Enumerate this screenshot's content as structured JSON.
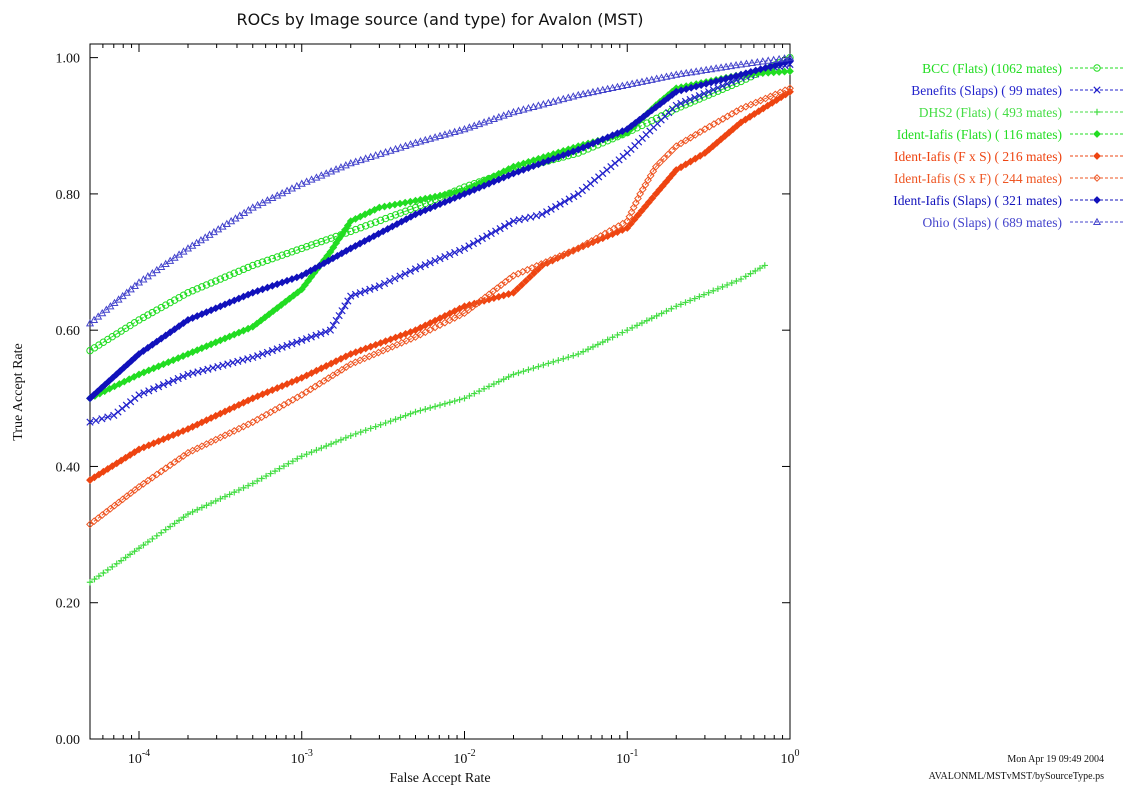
{
  "chart_data": {
    "type": "line",
    "title": "ROCs by Image source (and type) for Avalon (MST)",
    "xlabel": "False Accept Rate",
    "ylabel": "True Accept Rate",
    "x_scale": "log",
    "xlim": [
      5e-05,
      1.0
    ],
    "ylim": [
      0.0,
      1.02
    ],
    "x_ticks": [
      {
        "value": 0.0001,
        "base": "10",
        "exp": "-4"
      },
      {
        "value": 0.001,
        "base": "10",
        "exp": "-3"
      },
      {
        "value": 0.01,
        "base": "10",
        "exp": "-2"
      },
      {
        "value": 0.1,
        "base": "10",
        "exp": "-1"
      },
      {
        "value": 1.0,
        "base": "10",
        "exp": "0"
      }
    ],
    "y_ticks": [
      {
        "value": 0.0,
        "label": "0.00"
      },
      {
        "value": 0.2,
        "label": "0.20"
      },
      {
        "value": 0.4,
        "label": "0.40"
      },
      {
        "value": 0.6,
        "label": "0.60"
      },
      {
        "value": 0.8,
        "label": "0.80"
      },
      {
        "value": 1.0,
        "label": "1.00"
      }
    ],
    "grid": false,
    "legend_position": "top-right outside",
    "series": [
      {
        "name": "BCC (Flats) (1062 mates)",
        "color": "#22dd22",
        "marker": "circle",
        "x": [
          5e-05,
          0.0001,
          0.0002,
          0.0005,
          0.001,
          0.002,
          0.005,
          0.01,
          0.02,
          0.05,
          0.1,
          0.2,
          0.5,
          1.0
        ],
        "y": [
          0.57,
          0.615,
          0.655,
          0.695,
          0.72,
          0.745,
          0.78,
          0.81,
          0.835,
          0.86,
          0.89,
          0.925,
          0.965,
          1.0
        ]
      },
      {
        "name": "Benefits (Slaps) ( 99 mates)",
        "color": "#2222cc",
        "marker": "x",
        "x": [
          5e-05,
          7e-05,
          0.0001,
          0.0002,
          0.0005,
          0.001,
          0.0015,
          0.002,
          0.003,
          0.005,
          0.01,
          0.02,
          0.03,
          0.05,
          0.1,
          0.2,
          0.5,
          1.0
        ],
        "y": [
          0.465,
          0.475,
          0.505,
          0.535,
          0.56,
          0.585,
          0.6,
          0.65,
          0.665,
          0.69,
          0.72,
          0.76,
          0.77,
          0.8,
          0.86,
          0.93,
          0.97,
          0.99
        ]
      },
      {
        "name": "DHS2 (Flats) ( 493 mates)",
        "color": "#44dd44",
        "marker": "plus",
        "x": [
          5e-05,
          0.0001,
          0.0002,
          0.0005,
          0.001,
          0.002,
          0.005,
          0.01,
          0.02,
          0.05,
          0.1,
          0.2,
          0.5,
          0.7
        ],
        "y": [
          0.23,
          0.28,
          0.33,
          0.375,
          0.415,
          0.445,
          0.48,
          0.5,
          0.535,
          0.565,
          0.6,
          0.635,
          0.675,
          0.695
        ]
      },
      {
        "name": "Ident-Iafis (Flats) ( 116 mates)",
        "color": "#22dd22",
        "marker": "diamond-filled",
        "x": [
          5e-05,
          0.0001,
          0.0002,
          0.0005,
          0.001,
          0.0015,
          0.002,
          0.003,
          0.005,
          0.01,
          0.02,
          0.05,
          0.1,
          0.15,
          0.2,
          0.5,
          1.0
        ],
        "y": [
          0.5,
          0.535,
          0.565,
          0.605,
          0.66,
          0.715,
          0.76,
          0.78,
          0.79,
          0.805,
          0.84,
          0.87,
          0.89,
          0.93,
          0.955,
          0.975,
          0.98
        ]
      },
      {
        "name": "Ident-Iafis (F x S) ( 216 mates)",
        "color": "#ee4411",
        "marker": "diamond-filled",
        "x": [
          5e-05,
          0.0001,
          0.0002,
          0.0005,
          0.001,
          0.002,
          0.005,
          0.01,
          0.02,
          0.03,
          0.05,
          0.1,
          0.15,
          0.2,
          0.3,
          0.5,
          1.0
        ],
        "y": [
          0.38,
          0.425,
          0.455,
          0.5,
          0.53,
          0.565,
          0.6,
          0.635,
          0.655,
          0.695,
          0.72,
          0.75,
          0.8,
          0.835,
          0.86,
          0.905,
          0.95
        ]
      },
      {
        "name": "Ident-Iafis (S x F) ( 244 mates)",
        "color": "#ee5522",
        "marker": "diamond-open",
        "x": [
          5e-05,
          0.0001,
          0.0002,
          0.0005,
          0.001,
          0.002,
          0.005,
          0.01,
          0.02,
          0.05,
          0.1,
          0.12,
          0.15,
          0.2,
          0.3,
          0.5,
          1.0
        ],
        "y": [
          0.315,
          0.37,
          0.42,
          0.465,
          0.505,
          0.55,
          0.59,
          0.625,
          0.68,
          0.72,
          0.76,
          0.8,
          0.84,
          0.87,
          0.895,
          0.925,
          0.955
        ]
      },
      {
        "name": "Ident-Iafis (Slaps) ( 321 mates)",
        "color": "#1111bb",
        "marker": "diamond-filled",
        "x": [
          5e-05,
          0.0001,
          0.0002,
          0.0005,
          0.001,
          0.002,
          0.005,
          0.01,
          0.02,
          0.05,
          0.1,
          0.2,
          0.5,
          1.0
        ],
        "y": [
          0.5,
          0.565,
          0.615,
          0.655,
          0.68,
          0.72,
          0.77,
          0.8,
          0.83,
          0.865,
          0.895,
          0.95,
          0.975,
          0.995
        ]
      },
      {
        "name": "Ohio (Slaps) ( 689 mates)",
        "color": "#4444cc",
        "marker": "triangle",
        "x": [
          5e-05,
          0.0001,
          0.0002,
          0.0005,
          0.001,
          0.002,
          0.005,
          0.01,
          0.02,
          0.05,
          0.1,
          0.2,
          0.5,
          1.0
        ],
        "y": [
          0.61,
          0.67,
          0.72,
          0.78,
          0.815,
          0.845,
          0.875,
          0.895,
          0.92,
          0.945,
          0.96,
          0.975,
          0.99,
          1.0
        ]
      }
    ]
  },
  "footer": {
    "timestamp": "Mon Apr 19 09:49 2004",
    "path": "AVALONML/MSTvMST/bySourceType.ps"
  }
}
